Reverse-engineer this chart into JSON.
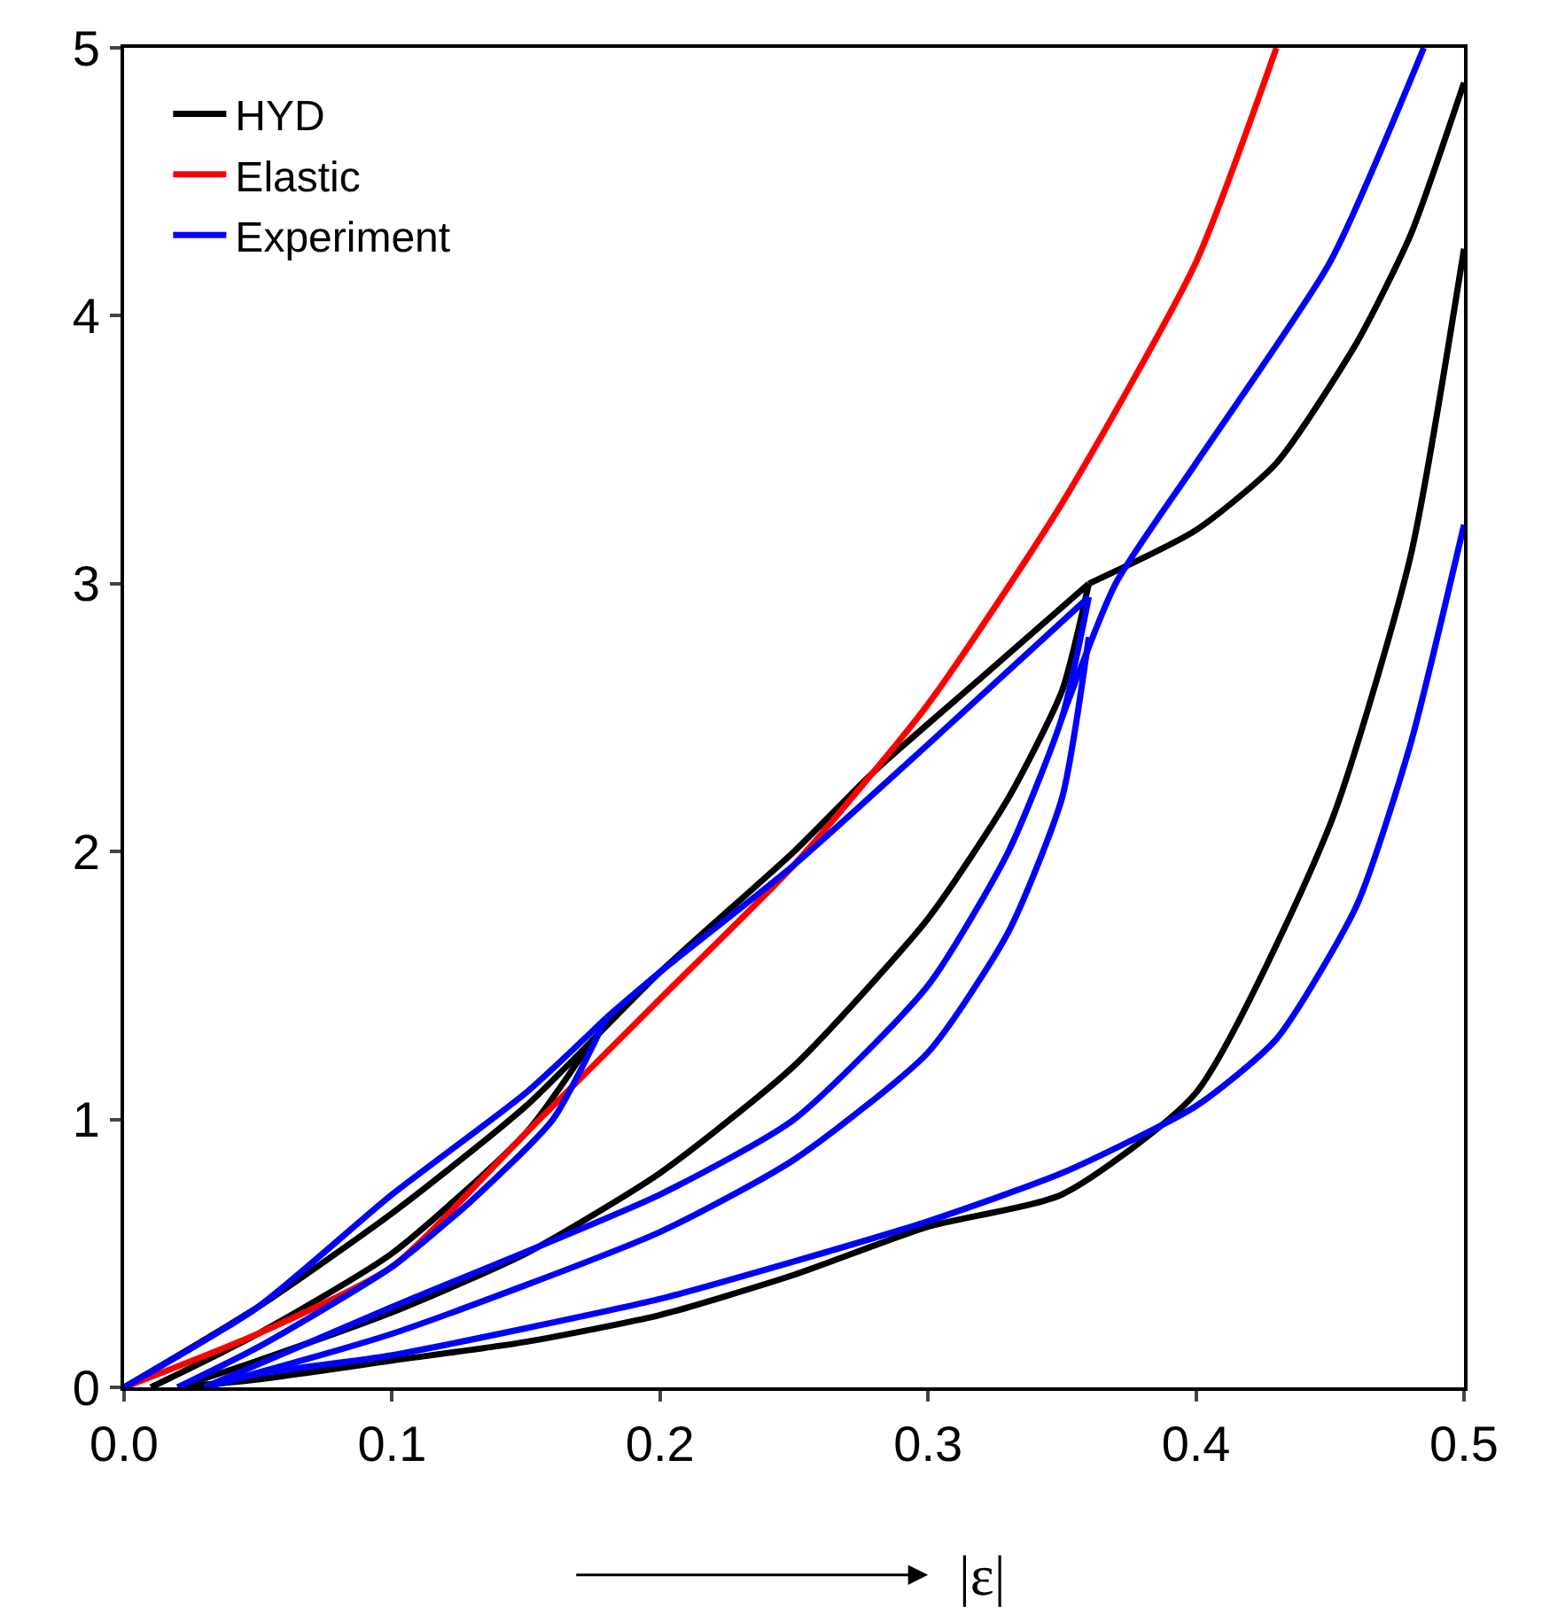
{
  "chart_data": {
    "type": "line",
    "xlabel": "|ε|",
    "xlim": [
      0,
      0.5
    ],
    "ylim": [
      0,
      5
    ],
    "xticks": [
      {
        "value": 0,
        "label": "0.0"
      },
      {
        "value": 0.1,
        "label": "0.1"
      },
      {
        "value": 0.2,
        "label": "0.2"
      },
      {
        "value": 0.3,
        "label": "0.3"
      },
      {
        "value": 0.4,
        "label": "0.4"
      },
      {
        "value": 0.5,
        "label": "0.5"
      }
    ],
    "yticks": [
      0,
      1,
      2,
      3,
      4,
      5
    ],
    "legend": "top left",
    "marker": "none",
    "line_style": "solid",
    "series": [
      {
        "name": "HYD",
        "color": "#000000",
        "x": [
          0,
          0.05,
          0.1,
          0.15,
          0.2,
          0.25,
          0.28,
          0.32,
          0.36,
          null,
          0.175,
          0.15,
          0.1,
          0.05,
          0.01,
          null,
          0.36,
          0.35,
          0.33,
          0.3,
          0.25,
          0.2,
          0.15,
          0.1,
          0.05,
          0.02,
          null,
          0.36,
          0.4,
          0.43,
          0.46,
          0.48,
          0.5,
          null,
          0.5,
          0.48,
          0.45,
          0.4,
          0.35,
          0.3,
          0.25,
          0.2,
          0.15,
          0.1,
          0.05,
          0.02
        ],
        "values": [
          0,
          0.3,
          0.65,
          1.05,
          1.55,
          2.0,
          2.3,
          2.65,
          3.0,
          null,
          1.3,
          0.95,
          0.5,
          0.2,
          0,
          null,
          3.0,
          2.6,
          2.2,
          1.75,
          1.2,
          0.8,
          0.5,
          0.28,
          0.1,
          0,
          null,
          3.0,
          3.2,
          3.45,
          3.9,
          4.3,
          4.87,
          null,
          4.25,
          3.1,
          2.1,
          1.1,
          0.72,
          0.6,
          0.42,
          0.27,
          0.17,
          0.1,
          0.03,
          0
        ]
      },
      {
        "name": "Elastic",
        "color": "#ff0000",
        "x": [
          0,
          0.05,
          0.1,
          0.15,
          0.2,
          0.25,
          0.3,
          0.35,
          0.4,
          0.43
        ],
        "values": [
          0,
          0.2,
          0.45,
          0.95,
          1.45,
          1.95,
          2.55,
          3.3,
          4.2,
          5.0
        ]
      },
      {
        "name": "Experiment",
        "color": "#0000ff",
        "x": [
          0,
          0.05,
          0.1,
          0.15,
          0.18,
          null,
          0.18,
          0.16,
          0.13,
          0.1,
          0.05,
          0.02,
          null,
          0.18,
          0.2,
          0.25,
          0.3,
          0.36,
          null,
          0.03,
          0.1,
          0.2,
          0.25,
          0.3,
          0.33,
          0.35,
          0.36,
          null,
          0.03,
          0.1,
          0.2,
          0.25,
          0.3,
          0.33,
          0.35,
          0.36,
          null,
          0.35,
          0.37,
          0.4,
          0.45,
          0.485,
          null,
          0.5,
          0.48,
          0.46,
          0.43,
          0.4,
          0.35,
          0.3,
          0.25,
          0.2,
          0.1,
          0.05,
          0.03
        ],
        "values": [
          0,
          0.3,
          0.72,
          1.1,
          1.38,
          null,
          1.38,
          1.0,
          0.7,
          0.45,
          0.15,
          0,
          null,
          1.38,
          1.55,
          1.95,
          2.4,
          2.95,
          null,
          0,
          0.3,
          0.72,
          1.0,
          1.5,
          2.0,
          2.5,
          2.95,
          null,
          0,
          0.2,
          0.58,
          0.85,
          1.25,
          1.7,
          2.2,
          2.8,
          null,
          2.5,
          3.0,
          3.45,
          4.2,
          5.0,
          null,
          3.22,
          2.4,
          1.8,
          1.3,
          1.05,
          0.8,
          0.62,
          0.47,
          0.33,
          0.12,
          0.05,
          0
        ]
      }
    ]
  }
}
